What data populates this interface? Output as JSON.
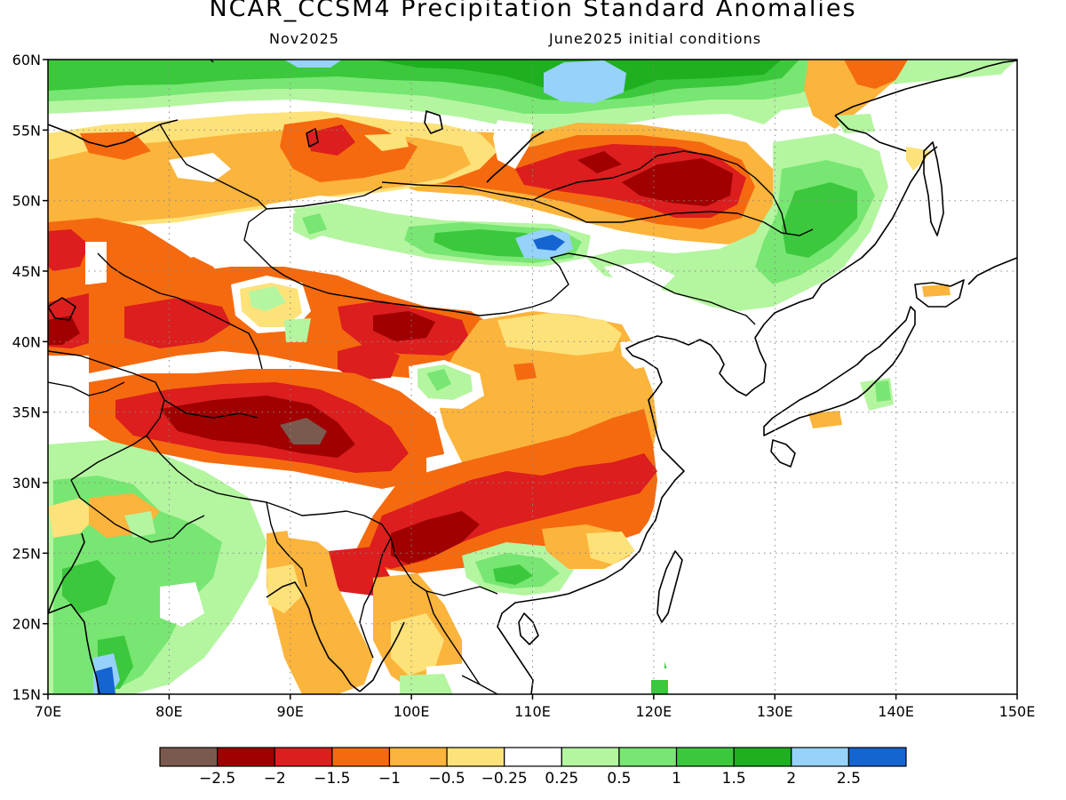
{
  "title": "NCAR_CCSM4 Precipitation Standard Anomalies",
  "subtitle_left": "Nov2025",
  "subtitle_right": "June2025 initial conditions",
  "lat_ticks": [
    "60N",
    "55N",
    "50N",
    "45N",
    "40N",
    "35N",
    "30N",
    "25N",
    "20N",
    "15N"
  ],
  "lon_ticks": [
    "70E",
    "80E",
    "90E",
    "100E",
    "110E",
    "120E",
    "130E",
    "140E",
    "150E"
  ],
  "colorbar": {
    "colors": [
      "#7a5a4e",
      "#a00000",
      "#dc1e1e",
      "#f56a0f",
      "#fbb43c",
      "#fde27a",
      "#ffffff",
      "#b4f5a0",
      "#78e672",
      "#3cc83c",
      "#1eb01e",
      "#96d2fa",
      "#1464d2"
    ],
    "labels": [
      "−2.5",
      "−2",
      "−1.5",
      "−1",
      "−0.5",
      "−0.25",
      "0.25",
      "0.5",
      "1",
      "1.5",
      "2",
      "2.5"
    ]
  }
}
